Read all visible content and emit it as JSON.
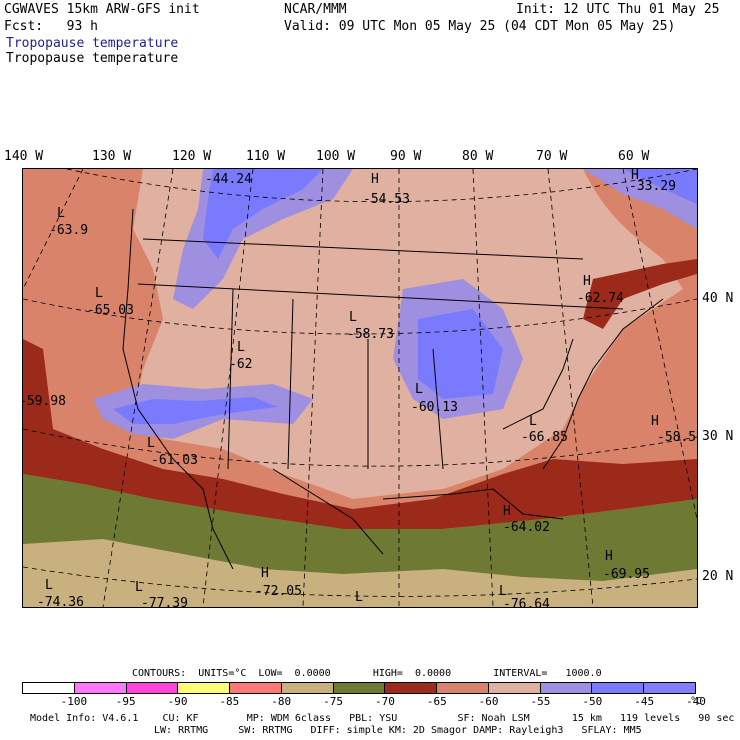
{
  "header": {
    "line1_left": "CGWAVES 15km ARW-GFS init",
    "line2_left": "Fcst:   93 h",
    "field_title_blue": "Tropopause temperature",
    "field_title_black": "Tropopause temperature",
    "center": "NCAR/MMM",
    "init": "Init: 12 UTC Thu 01 May 25",
    "valid": "Valid: 09 UTC Mon 05 May 25 (04 CDT Mon 05 May 25)"
  },
  "lon_labels": [
    "140 W",
    "130 W",
    "120 W",
    "110 W",
    "100 W",
    "90 W",
    "80 W",
    "70 W",
    "60 W"
  ],
  "lat_labels": [
    "40 N",
    "30 N",
    "20 N"
  ],
  "map_labels": [
    {
      "text": "-44.24"
    },
    {
      "text": "H"
    },
    {
      "text": "-54.53"
    },
    {
      "text": "H"
    },
    {
      "text": "-33.29"
    },
    {
      "text": "L"
    },
    {
      "text": "-63.9"
    },
    {
      "text": "L"
    },
    {
      "text": "-65.03"
    },
    {
      "text": "L"
    },
    {
      "text": "-58.73"
    },
    {
      "text": "H"
    },
    {
      "text": "-62.74"
    },
    {
      "text": "L"
    },
    {
      "text": "-62"
    },
    {
      "text": "-59.98"
    },
    {
      "text": "L"
    },
    {
      "text": "-60.13"
    },
    {
      "text": "L"
    },
    {
      "text": "-66.85"
    },
    {
      "text": "H"
    },
    {
      "text": "-58.5"
    },
    {
      "text": "L"
    },
    {
      "text": "-61.03"
    },
    {
      "text": "H"
    },
    {
      "text": "-64.02"
    },
    {
      "text": "H"
    },
    {
      "text": "-69.95"
    },
    {
      "text": "H"
    },
    {
      "text": "-72.05"
    },
    {
      "text": "L"
    },
    {
      "text": "-74.36"
    },
    {
      "text": "L"
    },
    {
      "text": "-77.39"
    },
    {
      "text": "L"
    },
    {
      "text": "L"
    },
    {
      "text": "-76.64"
    }
  ],
  "contours_line": "CONTOURS:  UNITS=°C  LOW=  0.0000       HIGH=  0.0000       INTERVAL=   1000.0",
  "colorbar": {
    "colors": [
      "#ffffff",
      "#ff77ff",
      "#ff44dd",
      "#ffff77",
      "#ff7777",
      "#c9b07f",
      "#6e7a33",
      "#9b2a1a",
      "#d9836a",
      "#e0b0a0",
      "#9e8fe0",
      "#7a7aff",
      "#7f7fff"
    ],
    "tick_labels": [
      "-100",
      "-95",
      "-90",
      "-85",
      "-80",
      "-75",
      "-70",
      "-65",
      "-60",
      "-55",
      "-50",
      "-45",
      "-40"
    ],
    "unit": "°C"
  },
  "footer": {
    "line1": "Model Info: V4.6.1    CU: KF        MP: WDM 6class   PBL: YSU          SF: Noah LSM       15 km   119 levels   90 sec",
    "line2": "LW: RRTMG     SW: RRTMG   DIFF: simple KM: 2D Smagor DAMP: Rayleigh3   SFLAY: MM5"
  }
}
